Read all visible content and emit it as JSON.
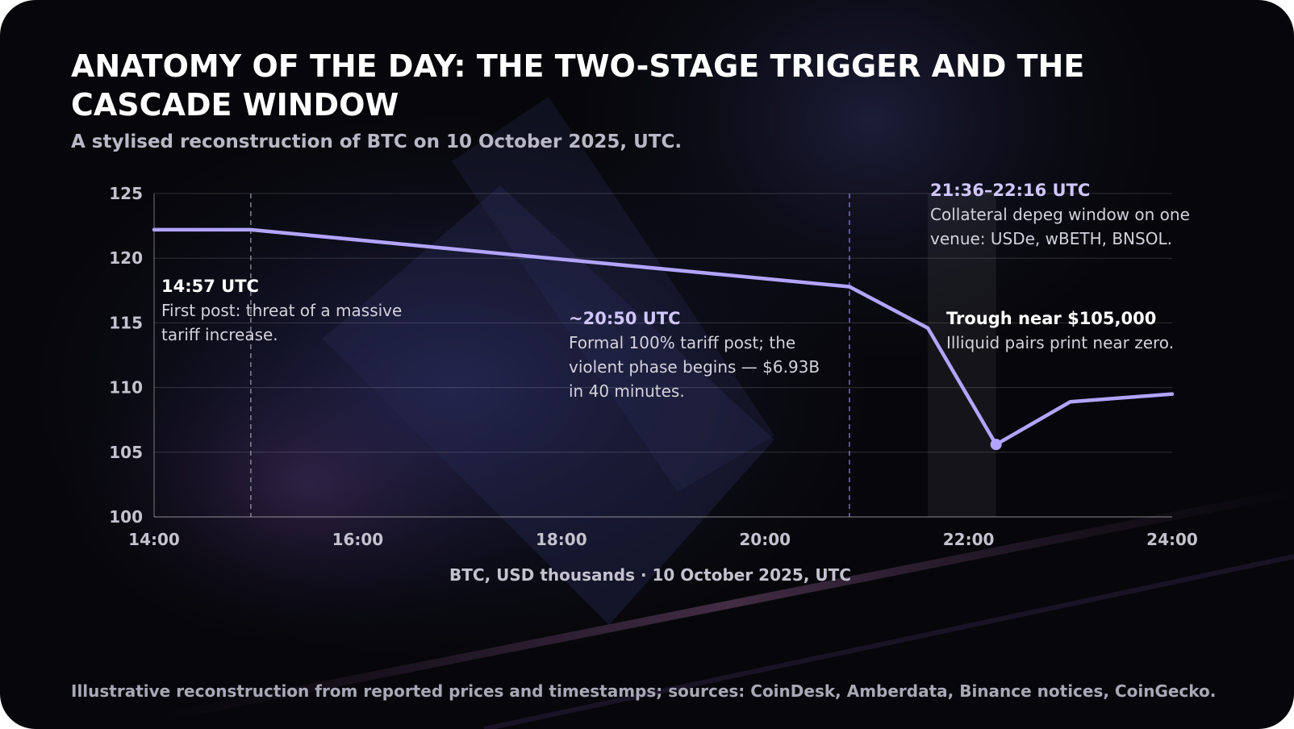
{
  "title": "ANATOMY OF THE DAY: THE TWO-STAGE TRIGGER AND THE CASCADE WINDOW",
  "subtitle": "A stylised reconstruction of BTC on 10 October 2025, UTC.",
  "footer": "Illustrative reconstruction from reported prices and timestamps; sources: CoinDesk, Amberdata, Binance notices, CoinGecko.",
  "colors": {
    "background": "#07070b",
    "line": "#b3a4ff",
    "accent_label": "#d0c6ff",
    "text_white": "#ffffff",
    "text_muted": "#d3d2dc",
    "axis_text": "#c3c2ce"
  },
  "chart_data": {
    "type": "line",
    "xlabel": "BTC, USD thousands · 10 October 2025, UTC",
    "ylabel": "",
    "xlim": [
      14,
      24
    ],
    "ylim": [
      100,
      125
    ],
    "x_ticks": [
      14,
      16,
      18,
      20,
      22,
      24
    ],
    "x_tick_labels": [
      "14:00",
      "16:00",
      "18:00",
      "20:00",
      "22:00",
      "24:00"
    ],
    "y_ticks": [
      100,
      105,
      110,
      115,
      120,
      125
    ],
    "y_tick_labels": [
      "100",
      "105",
      "110",
      "115",
      "120",
      "125"
    ],
    "grid": true,
    "series": [
      {
        "x": [
          14.0,
          14.95,
          20.83,
          21.6,
          22.27,
          23.0,
          24.0
        ],
        "y": [
          122.2,
          122.2,
          117.8,
          114.6,
          105.6,
          108.9,
          109.5
        ]
      }
    ],
    "trough_marker": {
      "x": 22.27,
      "y": 105.6
    },
    "vlines": [
      14.95,
      20.83
    ],
    "shaded_window": [
      21.6,
      22.27
    ],
    "annotations": [
      {
        "heading": "14:57 UTC",
        "lines": [
          "First post: threat of a massive",
          "tariff increase."
        ]
      },
      {
        "heading": "~20:50 UTC",
        "lines": [
          "Formal 100% tariff post; the",
          "violent phase begins — $6.93B",
          "in 40 minutes."
        ]
      },
      {
        "heading": "21:36–22:16 UTC",
        "lines": [
          "Collateral depeg window on one",
          "venue: USDe, wBETH, BNSOL."
        ]
      },
      {
        "heading": "Trough near $105,000",
        "lines": [
          "Illiquid pairs print near zero."
        ]
      }
    ]
  }
}
